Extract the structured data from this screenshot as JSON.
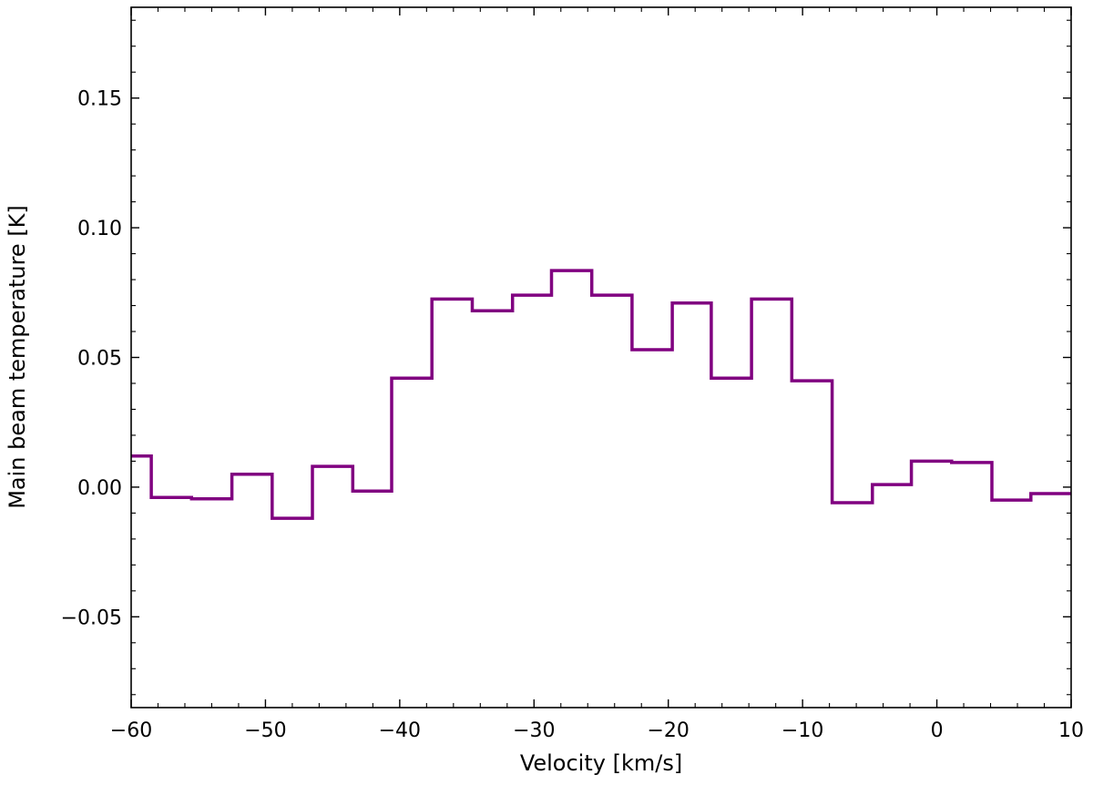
{
  "chart_data": {
    "type": "line",
    "step": "post",
    "xlabel": "Velocity [km/s]",
    "ylabel": "Main beam temperature [K]",
    "xlim": [
      -60,
      10
    ],
    "ylim": [
      -0.085,
      0.185
    ],
    "xticks": [
      -60,
      -50,
      -40,
      -30,
      -20,
      -10,
      0,
      10
    ],
    "xtick_labels": [
      "−60",
      "−50",
      "−40",
      "−30",
      "−20",
      "−10",
      "0",
      "10"
    ],
    "yticks": [
      -0.05,
      0.0,
      0.05,
      0.1,
      0.15
    ],
    "ytick_labels": [
      "−0.05",
      "0.00",
      "0.05",
      "0.10",
      "0.15"
    ],
    "grid": false,
    "series": [
      {
        "color": "#800080",
        "bin_edges": [
          -60,
          -58.5,
          -55.5,
          -52.5,
          -49.5,
          -46.5,
          -43.5,
          -40.6,
          -37.6,
          -34.6,
          -31.6,
          -28.7,
          -25.7,
          -22.7,
          -19.7,
          -16.8,
          -13.8,
          -10.8,
          -7.8,
          -4.8,
          -1.9,
          1.1,
          4.1,
          7.0,
          10
        ],
        "values": [
          0.012,
          -0.004,
          -0.0045,
          0.005,
          -0.012,
          0.008,
          -0.0015,
          0.042,
          0.0725,
          0.068,
          0.074,
          0.0835,
          0.074,
          0.053,
          0.071,
          0.042,
          0.0725,
          0.041,
          -0.006,
          0.001,
          0.01,
          0.0095,
          -0.005,
          -0.0025
        ]
      }
    ]
  }
}
